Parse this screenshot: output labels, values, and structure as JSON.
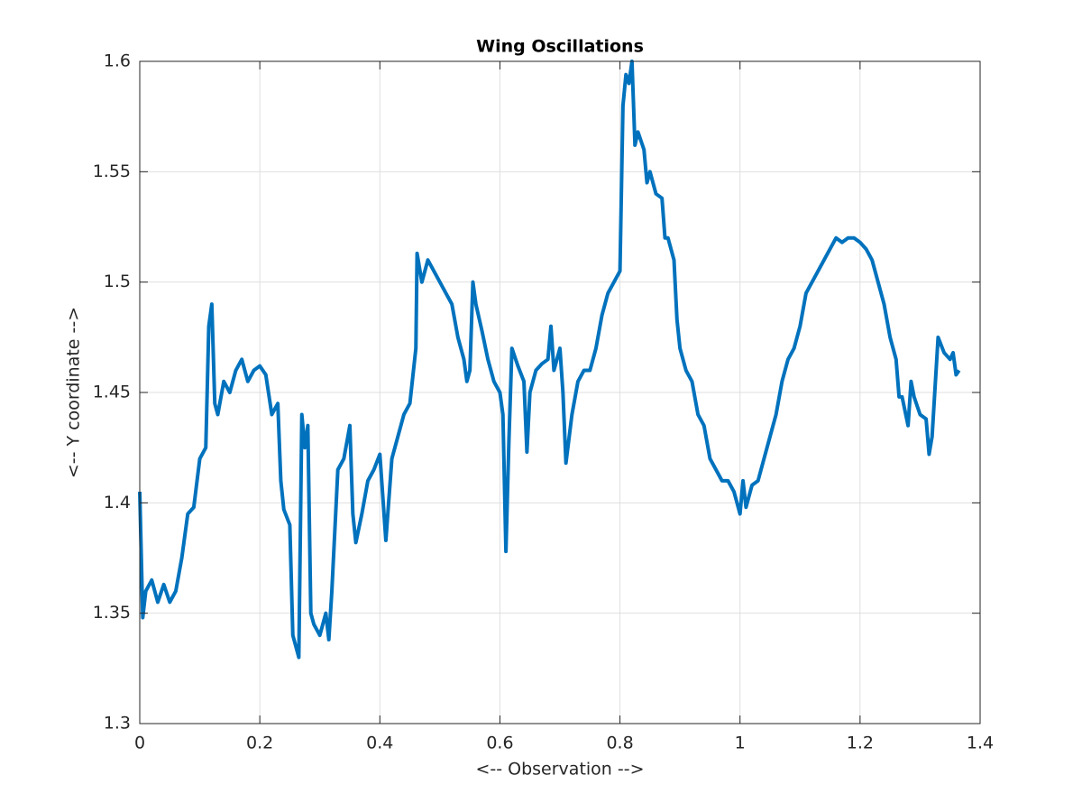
{
  "chart_data": {
    "type": "line",
    "title": "Wing Oscillations",
    "x_label": "<-- Observation -->",
    "y_label": "<-- Y coordinate -->",
    "xlim": [
      0,
      1.4
    ],
    "xticks": [
      0,
      0.2,
      0.4,
      0.6,
      0.8,
      1,
      1.2,
      1.4
    ],
    "ylim": [
      1.3,
      1.6
    ],
    "yticks": [
      1.3,
      1.35,
      1.4,
      1.45,
      1.5,
      1.55,
      1.6
    ],
    "grid": true,
    "series": [
      {
        "color": "#0072bd",
        "x": [
          0,
          0.005,
          0.01,
          0.02,
          0.03,
          0.04,
          0.05,
          0.06,
          0.07,
          0.08,
          0.09,
          0.1,
          0.11,
          0.115,
          0.12,
          0.125,
          0.13,
          0.14,
          0.15,
          0.16,
          0.17,
          0.18,
          0.19,
          0.2,
          0.21,
          0.22,
          0.23,
          0.235,
          0.24,
          0.25,
          0.255,
          0.265,
          0.27,
          0.275,
          0.28,
          0.285,
          0.29,
          0.3,
          0.31,
          0.315,
          0.32,
          0.33,
          0.34,
          0.35,
          0.355,
          0.36,
          0.37,
          0.38,
          0.39,
          0.4,
          0.41,
          0.42,
          0.43,
          0.44,
          0.45,
          0.46,
          0.462,
          0.47,
          0.48,
          0.49,
          0.5,
          0.51,
          0.52,
          0.53,
          0.54,
          0.545,
          0.55,
          0.555,
          0.56,
          0.57,
          0.58,
          0.59,
          0.6,
          0.605,
          0.61,
          0.615,
          0.62,
          0.63,
          0.64,
          0.645,
          0.65,
          0.66,
          0.67,
          0.68,
          0.685,
          0.69,
          0.7,
          0.705,
          0.71,
          0.72,
          0.73,
          0.74,
          0.75,
          0.76,
          0.77,
          0.78,
          0.79,
          0.8,
          0.805,
          0.81,
          0.815,
          0.82,
          0.825,
          0.83,
          0.84,
          0.845,
          0.85,
          0.86,
          0.87,
          0.875,
          0.88,
          0.89,
          0.895,
          0.9,
          0.91,
          0.92,
          0.93,
          0.94,
          0.95,
          0.96,
          0.97,
          0.98,
          0.99,
          1,
          1.005,
          1.01,
          1.02,
          1.03,
          1.04,
          1.05,
          1.06,
          1.07,
          1.08,
          1.09,
          1.1,
          1.11,
          1.12,
          1.13,
          1.14,
          1.15,
          1.16,
          1.17,
          1.18,
          1.19,
          1.2,
          1.21,
          1.22,
          1.23,
          1.24,
          1.25,
          1.26,
          1.265,
          1.27,
          1.28,
          1.285,
          1.29,
          1.3,
          1.31,
          1.315,
          1.32,
          1.33,
          1.34,
          1.35,
          1.355,
          1.36,
          1.365
        ],
        "values": [
          1.405,
          1.348,
          1.36,
          1.365,
          1.355,
          1.363,
          1.355,
          1.36,
          1.375,
          1.395,
          1.398,
          1.42,
          1.425,
          1.48,
          1.49,
          1.445,
          1.44,
          1.455,
          1.45,
          1.46,
          1.465,
          1.455,
          1.46,
          1.462,
          1.458,
          1.44,
          1.445,
          1.41,
          1.397,
          1.39,
          1.34,
          1.33,
          1.44,
          1.425,
          1.435,
          1.35,
          1.345,
          1.34,
          1.35,
          1.338,
          1.36,
          1.415,
          1.42,
          1.435,
          1.395,
          1.382,
          1.395,
          1.41,
          1.415,
          1.422,
          1.383,
          1.42,
          1.43,
          1.44,
          1.445,
          1.47,
          1.513,
          1.5,
          1.51,
          1.505,
          1.5,
          1.495,
          1.49,
          1.475,
          1.465,
          1.455,
          1.46,
          1.5,
          1.49,
          1.478,
          1.465,
          1.455,
          1.45,
          1.44,
          1.378,
          1.428,
          1.47,
          1.462,
          1.455,
          1.423,
          1.45,
          1.46,
          1.463,
          1.465,
          1.48,
          1.46,
          1.47,
          1.45,
          1.418,
          1.44,
          1.455,
          1.46,
          1.46,
          1.47,
          1.485,
          1.495,
          1.5,
          1.505,
          1.58,
          1.594,
          1.59,
          1.6,
          1.562,
          1.568,
          1.56,
          1.545,
          1.55,
          1.54,
          1.538,
          1.52,
          1.52,
          1.51,
          1.483,
          1.47,
          1.46,
          1.455,
          1.44,
          1.435,
          1.42,
          1.415,
          1.41,
          1.41,
          1.405,
          1.395,
          1.41,
          1.398,
          1.408,
          1.41,
          1.42,
          1.43,
          1.44,
          1.455,
          1.465,
          1.47,
          1.48,
          1.495,
          1.5,
          1.505,
          1.51,
          1.515,
          1.52,
          1.518,
          1.52,
          1.52,
          1.518,
          1.515,
          1.51,
          1.5,
          1.49,
          1.475,
          1.465,
          1.448,
          1.448,
          1.435,
          1.455,
          1.448,
          1.44,
          1.438,
          1.422,
          1.43,
          1.475,
          1.468,
          1.465,
          1.468,
          1.458,
          1.46
        ]
      }
    ]
  }
}
